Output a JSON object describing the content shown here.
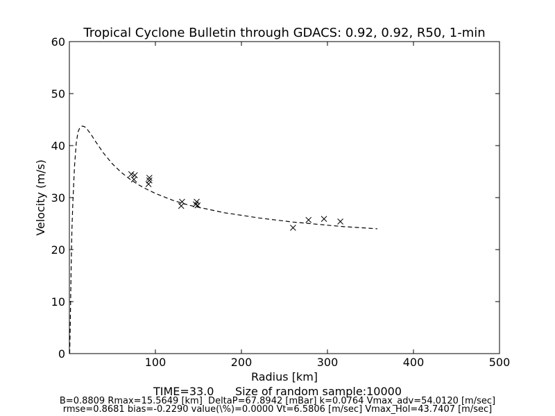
{
  "chart_data": {
    "type": "line",
    "title": "Tropical Cyclone Bulletin through GDACS: 0.92, 0.92, R50, 1-min",
    "xlabel": "Radius [km]",
    "ylabel": "Velocity (m/s)",
    "xlim": [
      0,
      500
    ],
    "ylim": [
      0,
      60
    ],
    "x_ticks": [
      100,
      200,
      300,
      400,
      500
    ],
    "y_ticks": [
      0,
      10,
      20,
      30,
      40,
      50,
      60
    ],
    "grid": false,
    "series": [
      {
        "style": "dashed line",
        "x": [
          0.3,
          1,
          2,
          3,
          4,
          6,
          8,
          10,
          12,
          14,
          15.56,
          18,
          20,
          25,
          30,
          40,
          50,
          60,
          70,
          80,
          90,
          100,
          120,
          140,
          160,
          180,
          200,
          220,
          240,
          260,
          280,
          300,
          320,
          340,
          358
        ],
        "y": [
          0,
          5,
          16,
          24,
          29,
          36,
          40.5,
          42.6,
          43.4,
          43.7,
          43.74,
          43.6,
          43.3,
          42.2,
          40.9,
          38.5,
          36.5,
          34.9,
          33.6,
          32.5,
          31.6,
          30.8,
          29.5,
          28.5,
          27.8,
          27.1,
          26.6,
          26.1,
          25.7,
          25.3,
          25.0,
          24.7,
          24.4,
          24.2,
          24.0
        ]
      },
      {
        "style": "x markers",
        "x": [
          72,
          75,
          76,
          92,
          93,
          93,
          130,
          131,
          147,
          148,
          149,
          260,
          278,
          296,
          315
        ],
        "y": [
          34.5,
          33.5,
          34.3,
          32.6,
          33.3,
          33.8,
          28.4,
          29.2,
          28.7,
          29.2,
          28.5,
          24.2,
          25.7,
          25.9,
          25.4
        ]
      }
    ]
  },
  "footer": {
    "line1": "TIME=33.0      Size of random sample:10000",
    "line2": "B=0.8809 Rmax=15.5649 [km]  DeltaP=67.8942 [mBar] k=0.0764 Vmax_adv=54.0120 [m/sec]",
    "line3": "rmse=0.8681 bias=-0.2290 value(\\%)=0.0000 Vt=6.5806 [m/sec] Vmax_Hol=43.7407 [m/sec]"
  }
}
